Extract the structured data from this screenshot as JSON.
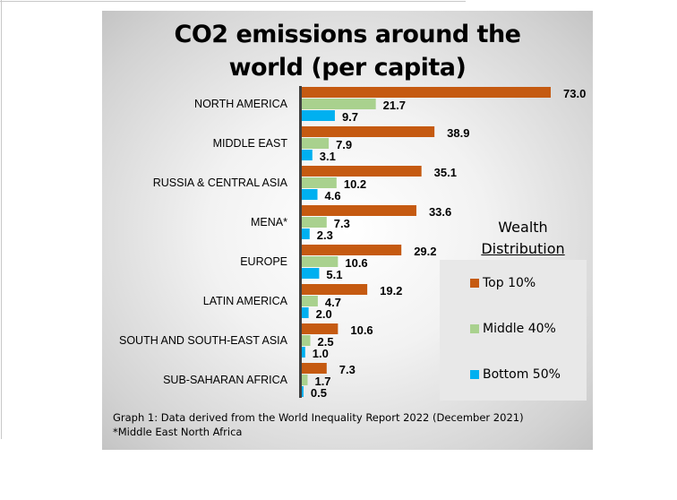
{
  "chart_data": {
    "type": "bar",
    "orientation": "horizontal",
    "title": "CO2 emissions around the world (per capita)",
    "categories": [
      "NORTH AMERICA",
      "MIDDLE EAST",
      "RUSSIA & CENTRAL ASIA",
      "MENA*",
      "EUROPE",
      "LATIN AMERICA",
      "SOUTH AND SOUTH-EAST ASIA",
      "SUB-SAHARAN AFRICA"
    ],
    "series": [
      {
        "name": "Top 10%",
        "color": "#c55a11",
        "values": [
          73.0,
          38.9,
          35.1,
          33.6,
          29.2,
          19.2,
          10.6,
          7.3
        ]
      },
      {
        "name": "Middle 40%",
        "color": "#a9d18e",
        "values": [
          21.7,
          7.9,
          10.2,
          7.3,
          10.6,
          4.7,
          2.5,
          1.7
        ]
      },
      {
        "name": "Bottom 50%",
        "color": "#00b0f0",
        "values": [
          9.7,
          3.1,
          4.6,
          2.3,
          5.1,
          2.0,
          1.0,
          0.5
        ]
      }
    ],
    "xlim": [
      0,
      73
    ],
    "grid": false,
    "legend_title_line1": "Wealth",
    "legend_title_line2": "Distribution",
    "legend_placement": "right",
    "data_labels": true
  },
  "title_line1": "CO2 emissions around the",
  "title_line2": "world (per capita)",
  "caption_line1": "Graph 1: Data derived from the World Inequality Report 2022 (December 2021)",
  "caption_line2": "*Middle East North Africa"
}
